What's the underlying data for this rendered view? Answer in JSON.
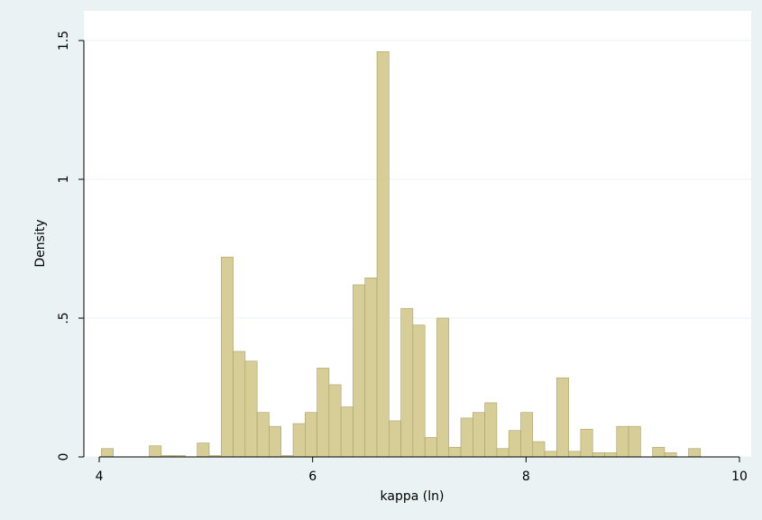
{
  "chart_data": {
    "type": "histogram",
    "xlabel": "kappa (ln)",
    "ylabel": "Density",
    "bins": [
      4.02,
      4.1323,
      4.2446,
      4.3569,
      4.4692,
      4.5815,
      4.6938,
      4.8061,
      4.9184,
      5.0307,
      5.143,
      5.2553,
      5.3676,
      5.4799,
      5.5922,
      5.7045,
      5.8168,
      5.9291,
      6.0414,
      6.1537,
      6.266,
      6.3783,
      6.4906,
      6.6029,
      6.7152,
      6.8275,
      6.9398,
      7.0521,
      7.1644,
      7.2767,
      7.389,
      7.5013,
      7.6136,
      7.7259,
      7.8382,
      7.9505,
      8.0628,
      8.1751,
      8.2874,
      8.3997,
      8.512,
      8.6243,
      8.7366,
      8.8489,
      8.9612,
      9.0735,
      9.1858,
      9.2981,
      9.4104,
      9.5227,
      9.635
    ],
    "values": [
      0.03,
      0,
      0,
      0,
      0.04,
      0.005,
      0.005,
      0,
      0.05,
      0.005,
      0.72,
      0.38,
      0.345,
      0.16,
      0.11,
      0.005,
      0.12,
      0.16,
      0.32,
      0.26,
      0.18,
      0.62,
      0.645,
      1.46,
      0.13,
      0.535,
      0.475,
      0.07,
      0.5,
      0.035,
      0.14,
      0.16,
      0.195,
      0.03,
      0.095,
      0.16,
      0.055,
      0.02,
      0.285,
      0.02,
      0.1,
      0.015,
      0.015,
      0.11,
      0.11,
      0,
      0.035,
      0.015,
      0,
      0.03
    ],
    "color": "#d7cd96",
    "edgecolor": "#a99f6b",
    "xlim": [
      3.856,
      10.11
    ],
    "xticks": [
      4,
      6,
      8,
      10
    ],
    "ylim": [
      0,
      1.607
    ],
    "yticks": [
      0,
      {
        "value": 0.5,
        "label": ".5"
      },
      1,
      1.5
    ],
    "grid": true
  }
}
